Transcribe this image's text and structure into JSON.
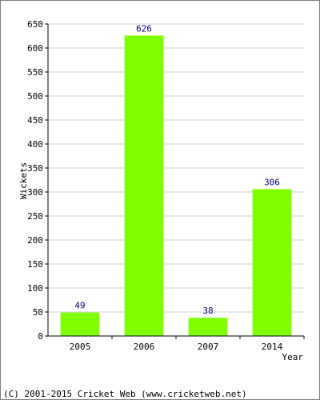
{
  "colors": {
    "bar": "#80ff00",
    "grid": "#d0d0d0",
    "axis": "#000000",
    "data_label": "#000080",
    "border": "#808080"
  },
  "footer": {
    "copyright": "(C) 2001-2015 Cricket Web (www.cricketweb.net)"
  },
  "chart_data": {
    "type": "bar",
    "title": "",
    "xlabel": "Year",
    "ylabel": "Wickets",
    "categories": [
      "2005",
      "2006",
      "2007",
      "2014"
    ],
    "values": [
      49,
      626,
      38,
      306
    ],
    "ylim": [
      0,
      650
    ],
    "yticks": [
      0,
      50,
      100,
      150,
      200,
      250,
      300,
      350,
      400,
      450,
      500,
      550,
      600,
      650
    ],
    "grid": true,
    "legend": "none",
    "data_labels": true
  }
}
